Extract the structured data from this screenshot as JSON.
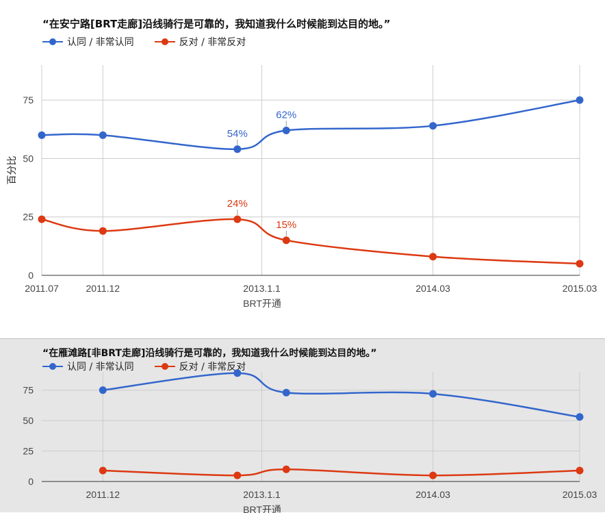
{
  "colors": {
    "approve": "#3366cc",
    "oppose": "#dc3912",
    "grid": "#cccccc",
    "axis": "#333333"
  },
  "chart_data": [
    {
      "type": "line",
      "title": "“在安宁路[BRT走廊]沿线骑行是可靠的，我知道我什么时候能到达目的地。”",
      "xlabel": "BRT开通",
      "ylabel": "百分比",
      "ylim": [
        0,
        90
      ],
      "yticks": [
        0,
        25,
        50,
        75
      ],
      "x_ticks": [
        "2011.07",
        "2011.12",
        "2013.1.1",
        "2014.03",
        "2015.03"
      ],
      "x_tick_months": [
        0,
        5,
        18,
        32,
        44
      ],
      "x_months": [
        0,
        5,
        16,
        20,
        32,
        44
      ],
      "grid": true,
      "legend": "top-left",
      "series": [
        {
          "name": "认同 / 非常认同",
          "color_key": "approve",
          "values": [
            60,
            60,
            54,
            62,
            64,
            75
          ],
          "data_labels": [
            null,
            null,
            "54%",
            "62%",
            null,
            null
          ]
        },
        {
          "name": "反对 / 非常反对",
          "color_key": "oppose",
          "values": [
            24,
            19,
            24,
            15,
            8,
            5
          ],
          "data_labels": [
            null,
            null,
            "24%",
            "15%",
            null,
            null
          ]
        }
      ]
    },
    {
      "type": "line",
      "title": "“在雁滩路[非BRT走廊]沿线骑行是可靠的，我知道我什么时候能到达目的地。”",
      "xlabel": "BRT开通",
      "ylabel": "",
      "ylim": [
        0,
        90
      ],
      "yticks": [
        0,
        25,
        50,
        75
      ],
      "x_ticks": [
        "2011.12",
        "2013.1.1",
        "2014.03",
        "2015.03"
      ],
      "x_tick_months": [
        5,
        18,
        32,
        44
      ],
      "x_months": [
        5,
        16,
        20,
        32,
        44
      ],
      "grid": true,
      "legend": "top-left",
      "series": [
        {
          "name": "认同 / 非常认同",
          "color_key": "approve",
          "values": [
            75,
            89,
            73,
            72,
            53
          ]
        },
        {
          "name": "反对 / 非常反对",
          "color_key": "oppose",
          "values": [
            9,
            5,
            10,
            5,
            9
          ]
        }
      ]
    }
  ]
}
